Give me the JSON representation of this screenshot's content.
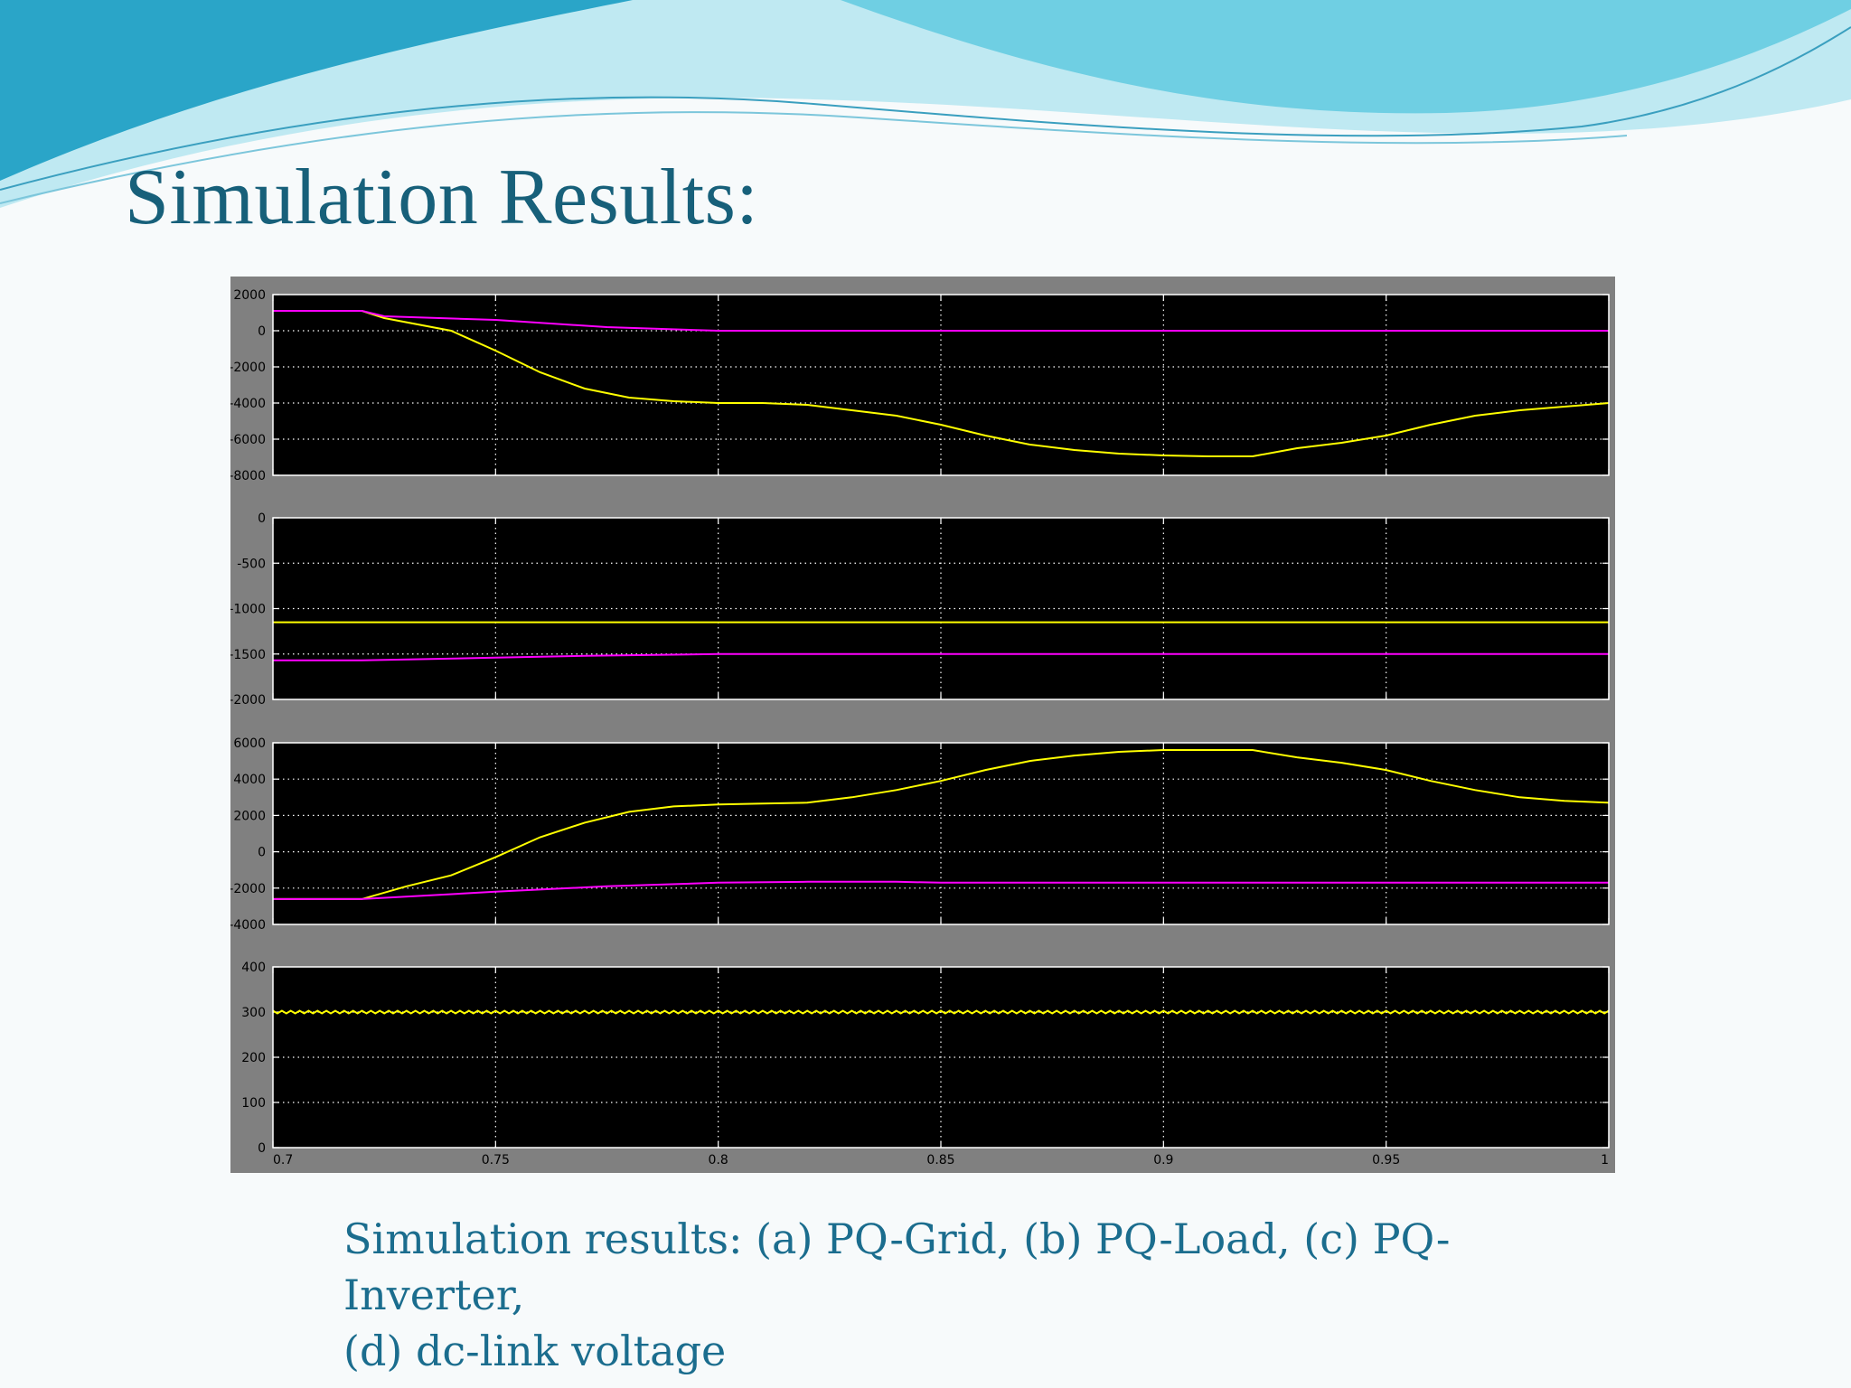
{
  "slide": {
    "title": "Simulation Results:",
    "caption_line1": "Simulation results: (a) PQ-Grid, (b) PQ-Load, (c) PQ-Inverter,",
    "caption_line2": "(d) dc-link voltage"
  },
  "colors": {
    "title": "#17607a",
    "caption": "#1b6d8e",
    "scope_frame": "#808080",
    "plot_bg": "#000000",
    "grid": "#ffffff",
    "trace_yellow": "#ffff00",
    "trace_magenta": "#ff00ff",
    "wave_light": "#bfe9f2",
    "wave_mid": "#6fcfe3",
    "wave_dark": "#2aa5c8"
  },
  "chart_data": [
    {
      "type": "line",
      "panel": "a",
      "xlim": [
        0.7,
        1
      ],
      "ylim": [
        -8000,
        2000
      ],
      "yticks": [
        "2000",
        "0",
        "-2000",
        "-4000",
        "-6000",
        "-8000"
      ],
      "grid": true,
      "series": [
        {
          "color": "yellow",
          "x": [
            0.7,
            0.72,
            0.725,
            0.74,
            0.75,
            0.76,
            0.77,
            0.78,
            0.79,
            0.8,
            0.81,
            0.82,
            0.83,
            0.84,
            0.85,
            0.86,
            0.87,
            0.88,
            0.89,
            0.9,
            0.91,
            0.92,
            0.93,
            0.94,
            0.95,
            0.96,
            0.97,
            0.98,
            0.99,
            1.0
          ],
          "y": [
            1100,
            1100,
            700,
            0,
            -1100,
            -2300,
            -3200,
            -3700,
            -3900,
            -4000,
            -4000,
            -4100,
            -4400,
            -4700,
            -5200,
            -5800,
            -6300,
            -6600,
            -6800,
            -6900,
            -6950,
            -6950,
            -6500,
            -6200,
            -5800,
            -5200,
            -4700,
            -4400,
            -4200,
            -4000
          ]
        },
        {
          "color": "magenta",
          "x": [
            0.7,
            0.72,
            0.725,
            0.75,
            0.775,
            0.8,
            1.0
          ],
          "y": [
            1100,
            1100,
            800,
            600,
            200,
            0,
            0
          ]
        }
      ]
    },
    {
      "type": "line",
      "panel": "b",
      "xlim": [
        0.7,
        1
      ],
      "ylim": [
        -2000,
        0
      ],
      "yticks": [
        "0",
        "-500",
        "-1000",
        "-1500",
        "-2000"
      ],
      "grid": true,
      "series": [
        {
          "color": "yellow",
          "x": [
            0.7,
            1.0
          ],
          "y": [
            -1150,
            -1150
          ]
        },
        {
          "color": "magenta",
          "x": [
            0.7,
            0.72,
            0.75,
            0.77,
            0.8,
            1.0
          ],
          "y": [
            -1570,
            -1570,
            -1540,
            -1520,
            -1500,
            -1500
          ]
        }
      ]
    },
    {
      "type": "line",
      "panel": "c",
      "xlim": [
        0.7,
        1
      ],
      "ylim": [
        -4000,
        6000
      ],
      "yticks": [
        "6000",
        "4000",
        "2000",
        "0",
        "-2000",
        "-4000"
      ],
      "grid": true,
      "series": [
        {
          "color": "yellow",
          "x": [
            0.7,
            0.72,
            0.73,
            0.74,
            0.75,
            0.76,
            0.77,
            0.78,
            0.79,
            0.8,
            0.81,
            0.82,
            0.83,
            0.84,
            0.85,
            0.86,
            0.87,
            0.88,
            0.89,
            0.9,
            0.91,
            0.92,
            0.93,
            0.94,
            0.95,
            0.96,
            0.97,
            0.98,
            0.99,
            1.0
          ],
          "y": [
            -2600,
            -2600,
            -1900,
            -1300,
            -300,
            800,
            1600,
            2200,
            2500,
            2600,
            2650,
            2700,
            3000,
            3400,
            3900,
            4500,
            5000,
            5300,
            5500,
            5600,
            5600,
            5600,
            5200,
            4900,
            4500,
            3900,
            3400,
            3000,
            2800,
            2700
          ]
        },
        {
          "color": "magenta",
          "x": [
            0.7,
            0.72,
            0.75,
            0.775,
            0.8,
            0.82,
            0.84,
            0.85,
            1.0
          ],
          "y": [
            -2600,
            -2600,
            -2200,
            -1900,
            -1700,
            -1650,
            -1650,
            -1700,
            -1700
          ]
        }
      ]
    },
    {
      "type": "line",
      "panel": "d",
      "xlim": [
        0.7,
        1
      ],
      "ylim": [
        0,
        400
      ],
      "yticks": [
        "400",
        "300",
        "200",
        "100",
        "0"
      ],
      "xticks": [
        "0.7",
        "0.75",
        "0.8",
        "0.85",
        "0.9",
        "0.95",
        "1"
      ],
      "grid": true,
      "series": [
        {
          "color": "yellow",
          "x": [
            0.7,
            1.0
          ],
          "y": [
            300,
            300
          ],
          "ripple": 3
        }
      ]
    }
  ]
}
